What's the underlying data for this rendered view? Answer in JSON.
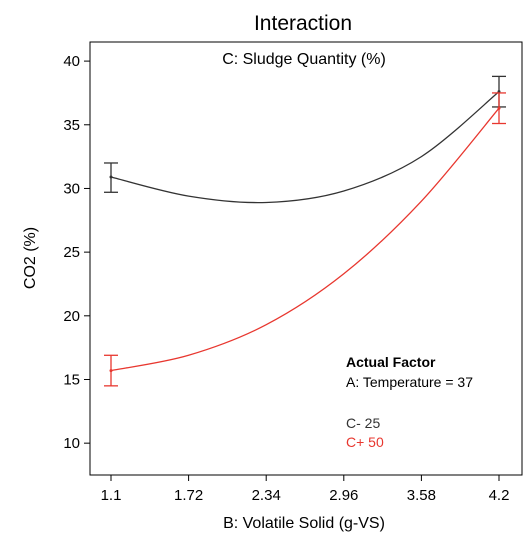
{
  "chart_data": {
    "type": "line",
    "title": "Interaction",
    "subtitle": "C: Sludge Quantity (%)",
    "xlabel": "B: Volatile Solid (g-VS)",
    "ylabel": "CO2 (%)",
    "xlim": [
      1.1,
      4.2
    ],
    "ylim": [
      7.5,
      41.5
    ],
    "x_ticks": [
      "1.1",
      "1.72",
      "2.34",
      "2.96",
      "3.58",
      "4.2"
    ],
    "y_ticks": [
      "10",
      "15",
      "20",
      "25",
      "30",
      "35",
      "40"
    ],
    "grid": false,
    "legend_position": "bottom-right",
    "legend": {
      "title": "Actual Factor",
      "factor": "A: Temperature = 37",
      "entries": [
        "C- 25",
        "C+ 50"
      ]
    },
    "series": [
      {
        "name": "C- 25",
        "color": "#333333",
        "endpoints": [
          {
            "x": 1.1,
            "y": 30.9,
            "err_low": 29.7,
            "err_high": 32.0
          },
          {
            "x": 4.2,
            "y": 37.6,
            "err_low": 36.4,
            "err_high": 38.8
          }
        ],
        "curve": [
          [
            1.1,
            30.9
          ],
          [
            1.72,
            29.4
          ],
          [
            2.34,
            28.9
          ],
          [
            2.96,
            29.8
          ],
          [
            3.58,
            32.5
          ],
          [
            4.2,
            37.6
          ]
        ]
      },
      {
        "name": "C+ 50",
        "color": "#e8372f",
        "endpoints": [
          {
            "x": 1.1,
            "y": 15.7,
            "err_low": 14.5,
            "err_high": 16.9
          },
          {
            "x": 4.2,
            "y": 36.3,
            "err_low": 35.1,
            "err_high": 37.5
          }
        ],
        "curve": [
          [
            1.1,
            15.7
          ],
          [
            1.72,
            16.9
          ],
          [
            2.34,
            19.3
          ],
          [
            2.96,
            23.3
          ],
          [
            3.58,
            29.0
          ],
          [
            4.2,
            36.3
          ]
        ]
      }
    ]
  }
}
